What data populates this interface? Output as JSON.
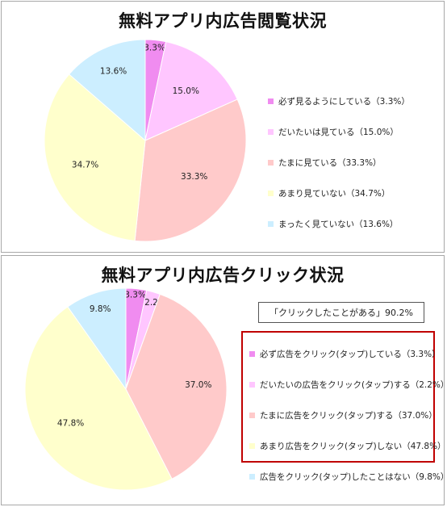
{
  "chart_data": [
    {
      "type": "pie",
      "title": "無料アプリ内広告閲覧状況",
      "legend_position": "right",
      "slices": [
        {
          "label": "必ず見るようにしている",
          "value": 3.3,
          "display": "3.3%",
          "legend": "必ず見るようにしている（3.3%）",
          "color": "#f08cf0"
        },
        {
          "label": "だいたいは見ている",
          "value": 15.0,
          "display": "15.0%",
          "legend": "だいたいは見ている（15.0%）",
          "color": "#ffc6ff"
        },
        {
          "label": "たまに見ている",
          "value": 33.3,
          "display": "33.3%",
          "legend": "たまに見ている（33.3%）",
          "color": "#ffcaca"
        },
        {
          "label": "あまり見ていない",
          "value": 34.7,
          "display": "34.7%",
          "legend": "あまり見ていない（34.7%）",
          "color": "#ffffcc"
        },
        {
          "label": "まったく見ていない",
          "value": 13.6,
          "display": "13.6%",
          "legend": "まったく見ていない（13.6%）",
          "color": "#cceeff"
        }
      ]
    },
    {
      "type": "pie",
      "title": "無料アプリ内広告クリック状況",
      "legend_position": "right",
      "annotation": "「クリックしたことがある」90.2%",
      "slices": [
        {
          "label": "必ず広告をクリック(タップ)している",
          "value": 3.3,
          "display": "3.3%",
          "legend": "必ず広告をクリック(タップ)している（3.3%）",
          "color": "#f08cf0"
        },
        {
          "label": "だいたいの広告をクリック(タップ)する",
          "value": 2.2,
          "display": "2.2%",
          "legend": "だいたいの広告をクリック(タップ)する（2.2%）",
          "color": "#ffc6ff"
        },
        {
          "label": "たまに広告をクリック(タップ)する",
          "value": 37.0,
          "display": "37.0%",
          "legend": "たまに広告をクリック(タップ)する（37.0%）",
          "color": "#ffcaca"
        },
        {
          "label": "あまり広告をクリック(タップ)しない",
          "value": 47.8,
          "display": "47.8%",
          "legend": "あまり広告をクリック(タップ)しない（47.8%）",
          "color": "#ffffcc"
        },
        {
          "label": "広告をクリック(タップ)したことはない",
          "value": 9.8,
          "display": "9.8%",
          "legend": "広告をクリック(タップ)したことはない（9.8%）",
          "color": "#cceeff"
        }
      ]
    }
  ]
}
